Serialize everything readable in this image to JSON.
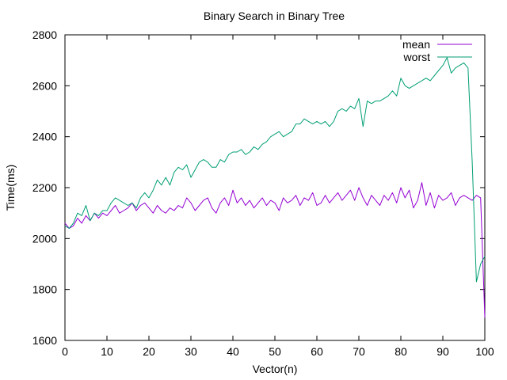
{
  "chart_data": {
    "type": "line",
    "title": "Binary Search in Binary Tree",
    "xlabel": "Vector(n)",
    "ylabel": "Time(ms)",
    "xlim": [
      0,
      100
    ],
    "ylim": [
      1600,
      2800
    ],
    "xticks": [
      0,
      10,
      20,
      30,
      40,
      50,
      60,
      70,
      80,
      90,
      100
    ],
    "yticks": [
      1600,
      1800,
      2000,
      2200,
      2400,
      2600,
      2800
    ],
    "grid": false,
    "legend": "top-right",
    "series": [
      {
        "name": "mean",
        "color": "#9400d3",
        "x": [
          0,
          1,
          2,
          3,
          4,
          5,
          6,
          7,
          8,
          9,
          10,
          11,
          12,
          13,
          14,
          15,
          16,
          17,
          18,
          19,
          20,
          21,
          22,
          23,
          24,
          25,
          26,
          27,
          28,
          29,
          30,
          31,
          32,
          33,
          34,
          35,
          36,
          37,
          38,
          39,
          40,
          41,
          42,
          43,
          44,
          45,
          46,
          47,
          48,
          49,
          50,
          51,
          52,
          53,
          54,
          55,
          56,
          57,
          58,
          59,
          60,
          61,
          62,
          63,
          64,
          65,
          66,
          67,
          68,
          69,
          70,
          71,
          72,
          73,
          74,
          75,
          76,
          77,
          78,
          79,
          80,
          81,
          82,
          83,
          84,
          85,
          86,
          87,
          88,
          89,
          90,
          91,
          92,
          93,
          94,
          95,
          96,
          97,
          98,
          99,
          100
        ],
        "y": [
          2060,
          2040,
          2050,
          2080,
          2060,
          2090,
          2070,
          2100,
          2080,
          2100,
          2090,
          2110,
          2130,
          2100,
          2110,
          2120,
          2140,
          2110,
          2130,
          2140,
          2120,
          2100,
          2130,
          2110,
          2100,
          2120,
          2110,
          2130,
          2120,
          2160,
          2140,
          2110,
          2130,
          2150,
          2160,
          2120,
          2100,
          2140,
          2160,
          2130,
          2190,
          2140,
          2160,
          2130,
          2150,
          2120,
          2140,
          2160,
          2130,
          2150,
          2140,
          2110,
          2160,
          2140,
          2150,
          2170,
          2130,
          2160,
          2150,
          2180,
          2130,
          2140,
          2170,
          2140,
          2160,
          2180,
          2150,
          2170,
          2190,
          2150,
          2200,
          2160,
          2130,
          2170,
          2150,
          2130,
          2170,
          2150,
          2180,
          2140,
          2200,
          2160,
          2190,
          2120,
          2150,
          2220,
          2130,
          2180,
          2120,
          2170,
          2150,
          2160,
          2180,
          2130,
          2160,
          2170,
          2160,
          2150,
          2170,
          2160,
          1690
        ]
      },
      {
        "name": "worst",
        "color": "#009e73",
        "x": [
          0,
          1,
          2,
          3,
          4,
          5,
          6,
          7,
          8,
          9,
          10,
          11,
          12,
          13,
          14,
          15,
          16,
          17,
          18,
          19,
          20,
          21,
          22,
          23,
          24,
          25,
          26,
          27,
          28,
          29,
          30,
          31,
          32,
          33,
          34,
          35,
          36,
          37,
          38,
          39,
          40,
          41,
          42,
          43,
          44,
          45,
          46,
          47,
          48,
          49,
          50,
          51,
          52,
          53,
          54,
          55,
          56,
          57,
          58,
          59,
          60,
          61,
          62,
          63,
          64,
          65,
          66,
          67,
          68,
          69,
          70,
          71,
          72,
          73,
          74,
          75,
          76,
          77,
          78,
          79,
          80,
          81,
          82,
          83,
          84,
          85,
          86,
          87,
          88,
          89,
          90,
          91,
          92,
          93,
          94,
          95,
          96,
          97,
          98,
          99,
          100
        ],
        "y": [
          2050,
          2040,
          2060,
          2100,
          2090,
          2130,
          2070,
          2100,
          2090,
          2110,
          2110,
          2140,
          2160,
          2150,
          2140,
          2130,
          2140,
          2120,
          2160,
          2180,
          2160,
          2190,
          2230,
          2210,
          2240,
          2210,
          2260,
          2280,
          2270,
          2290,
          2240,
          2270,
          2300,
          2310,
          2300,
          2280,
          2280,
          2310,
          2300,
          2330,
          2340,
          2340,
          2350,
          2330,
          2340,
          2360,
          2350,
          2370,
          2380,
          2400,
          2410,
          2420,
          2400,
          2410,
          2420,
          2450,
          2450,
          2470,
          2460,
          2450,
          2460,
          2450,
          2460,
          2440,
          2460,
          2500,
          2510,
          2500,
          2520,
          2510,
          2550,
          2440,
          2540,
          2530,
          2540,
          2540,
          2550,
          2560,
          2580,
          2560,
          2630,
          2600,
          2590,
          2600,
          2610,
          2620,
          2630,
          2620,
          2640,
          2660,
          2680,
          2710,
          2650,
          2670,
          2680,
          2690,
          2670,
          2300,
          1830,
          1900,
          1930
        ]
      }
    ]
  }
}
